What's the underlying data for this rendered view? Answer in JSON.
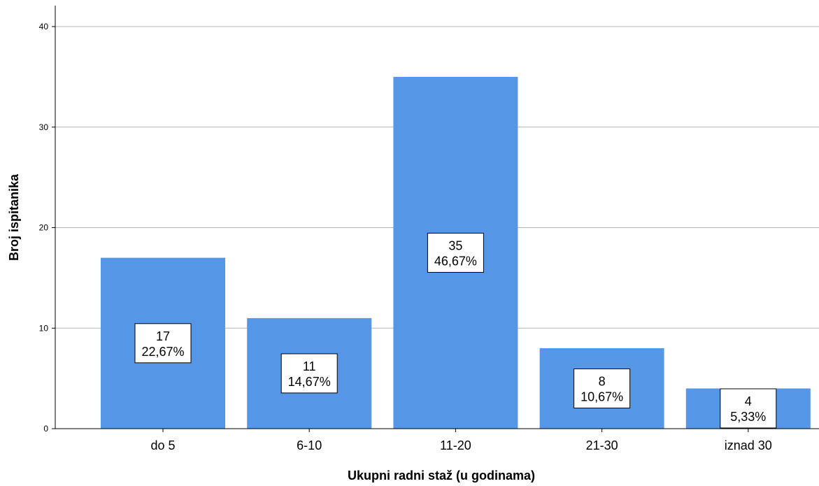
{
  "chart_data": {
    "type": "bar",
    "categories": [
      "do 5",
      "6-10",
      "11-20",
      "21-30",
      "iznad 30"
    ],
    "values": [
      17,
      11,
      35,
      8,
      4
    ],
    "percent_labels": [
      "22,67%",
      "14,67%",
      "46,67%",
      "10,67%",
      "5,33%"
    ],
    "xlabel": "Ukupni radni staž (u godinama)",
    "ylabel": "Broj ispitanika",
    "ylim": [
      0,
      40
    ],
    "yticks": [
      0,
      10,
      20,
      30,
      40
    ],
    "grid": true,
    "colors": {
      "bar": "#5596e6",
      "grid": "#b4b4b4",
      "axis": "#000000"
    }
  }
}
